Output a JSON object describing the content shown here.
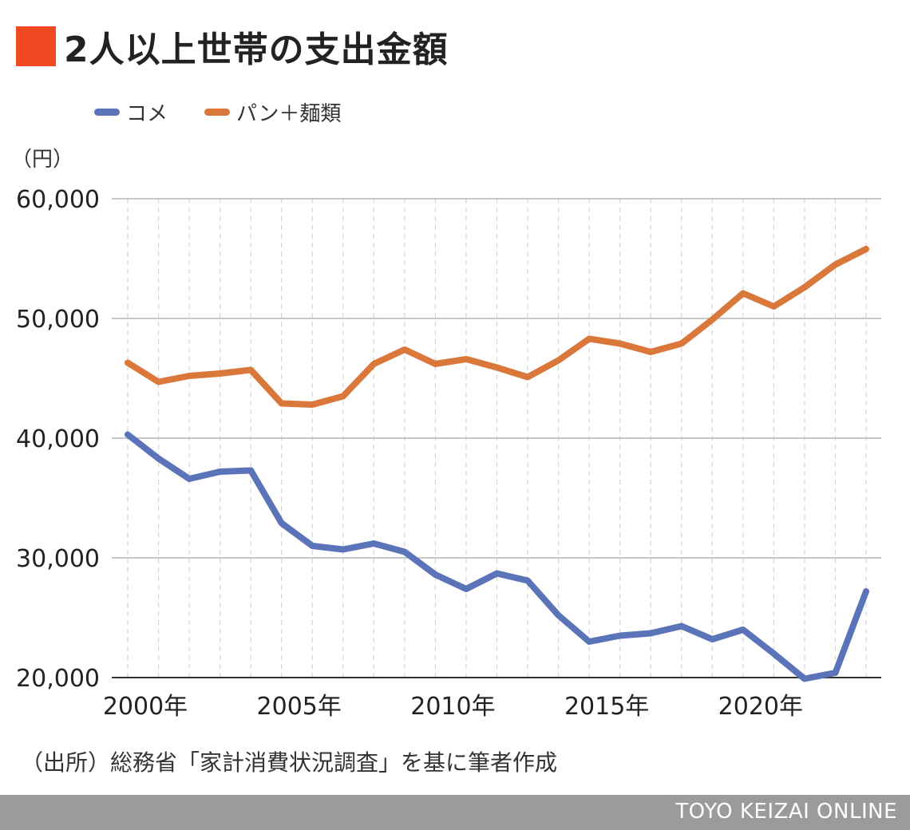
{
  "title": "2人以上世帯の支出金額",
  "legend": {
    "rice": "コメ",
    "bread": "パン＋麺類"
  },
  "unit_label": "（円）",
  "source": "（出所）総務省「家計消費状況調査」を基に筆者作成",
  "footer": "TOYO KEIZAI ONLINE",
  "colors": {
    "title_mark": "#f14a22",
    "rice": "#5b73b8",
    "bread": "#d9783a",
    "footer": "#9b9b9b"
  },
  "chart_data": {
    "type": "line",
    "title": "2人以上世帯の支出金額",
    "ylabel": "（円）",
    "ylim": [
      20000,
      60000
    ],
    "yticks": [
      20000,
      30000,
      40000,
      50000,
      60000
    ],
    "ytick_labels": [
      "20,000",
      "30,000",
      "40,000",
      "50,000",
      "60,000"
    ],
    "x": [
      2000,
      2001,
      2002,
      2003,
      2004,
      2005,
      2006,
      2007,
      2008,
      2009,
      2010,
      2011,
      2012,
      2013,
      2014,
      2015,
      2016,
      2017,
      2018,
      2019,
      2020,
      2021,
      2022,
      2023,
      2024
    ],
    "xtick_values": [
      2000,
      2005,
      2010,
      2015,
      2020
    ],
    "xtick_labels": [
      "2000年",
      "2005年",
      "2010年",
      "2015年",
      "2020年"
    ],
    "grid": true,
    "legend": "top-left",
    "series": [
      {
        "name": "コメ",
        "values": [
          40300,
          38300,
          36600,
          37200,
          37300,
          32900,
          31000,
          30700,
          31200,
          30500,
          28600,
          27400,
          28700,
          28100,
          25200,
          23000,
          23500,
          23700,
          24300,
          23200,
          24000,
          22000,
          19900,
          20400,
          27200
        ]
      },
      {
        "name": "パン＋麺類",
        "values": [
          46300,
          44700,
          45200,
          45400,
          45700,
          42900,
          42800,
          43500,
          46200,
          47400,
          46200,
          46600,
          45900,
          45100,
          46500,
          48300,
          47900,
          47200,
          47900,
          49900,
          52100,
          51000,
          52600,
          54500,
          55800
        ]
      }
    ]
  }
}
